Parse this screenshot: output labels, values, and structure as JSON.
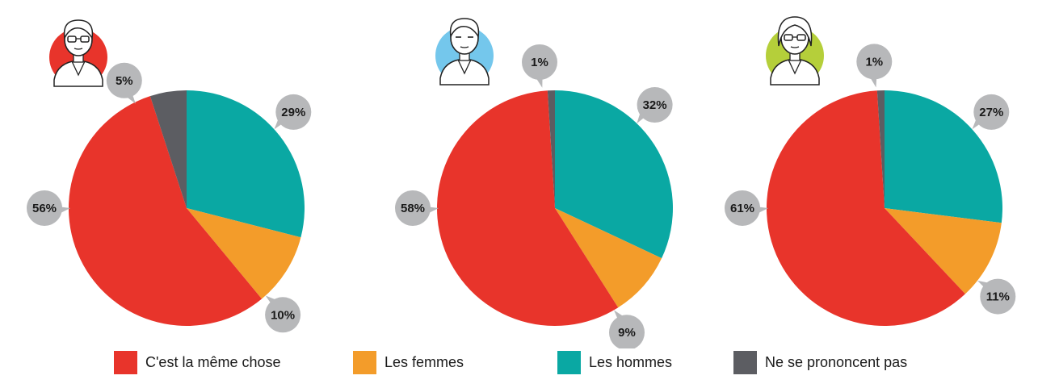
{
  "chart_data": [
    {
      "type": "pie",
      "categories": [
        "C'est la même chose",
        "Les femmes",
        "Les hommes",
        "Ne se prononcent pas"
      ],
      "values": [
        56,
        10,
        29,
        5
      ],
      "labels": [
        "56%",
        "10%",
        "29%",
        "5%"
      ]
    },
    {
      "type": "pie",
      "categories": [
        "C'est la même chose",
        "Les femmes",
        "Les hommes",
        "Ne se prononcent pas"
      ],
      "values": [
        58,
        9,
        32,
        1
      ],
      "labels": [
        "58%",
        "9%",
        "32%",
        "1%"
      ]
    },
    {
      "type": "pie",
      "categories": [
        "C'est la même chose",
        "Les femmes",
        "Les hommes",
        "Ne se prononcent pas"
      ],
      "values": [
        61,
        11,
        27,
        1
      ],
      "labels": [
        "61%",
        "11%",
        "27%",
        "1%"
      ]
    }
  ],
  "legend": {
    "placement": "bottom",
    "items": [
      {
        "label": "C'est la même chose",
        "color": "#e8342b"
      },
      {
        "label": "Les femmes",
        "color": "#f39c2a"
      },
      {
        "label": "Les hommes",
        "color": "#0aa8a3"
      },
      {
        "label": "Ne se prononcent pas",
        "color": "#5c5d62"
      }
    ]
  },
  "avatars": [
    {
      "icon": "male-doctor-glasses-icon",
      "color": "#e8342b"
    },
    {
      "icon": "male-doctor-icon",
      "color": "#74c7ec"
    },
    {
      "icon": "female-doctor-icon",
      "color": "#b5cf3a"
    }
  ],
  "bubble_color": "#b7b8ba"
}
